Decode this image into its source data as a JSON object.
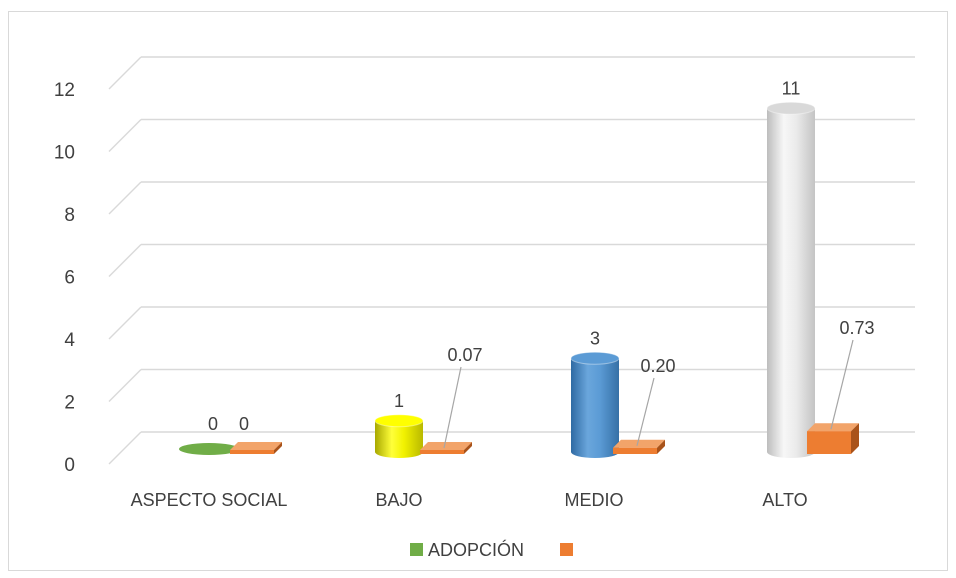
{
  "chart_data": {
    "type": "bar",
    "categories": [
      "ASPECTO SOCIAL",
      "BAJO",
      "MEDIO",
      "ALTO"
    ],
    "series": [
      {
        "name": "ADOPCIÓN",
        "values": [
          0,
          1,
          3,
          11
        ],
        "labels": [
          "0",
          "1",
          "3",
          "11"
        ],
        "color": "#70ad47",
        "point_colors": [
          "#70ad47",
          "#ffff00",
          "#5b9bd5",
          "#d9d9d9"
        ]
      },
      {
        "name": "",
        "values": [
          0,
          0.07,
          0.2,
          0.73
        ],
        "labels": [
          "0",
          "0.07",
          "0.20",
          "0.73"
        ],
        "color": "#ed7d31"
      }
    ],
    "y_ticks": [
      "0",
      "2",
      "4",
      "6",
      "8",
      "10",
      "12"
    ],
    "ylim": [
      0,
      12
    ],
    "grid": true,
    "legend": "bottom",
    "title": "",
    "xlabel": "",
    "ylabel": ""
  }
}
